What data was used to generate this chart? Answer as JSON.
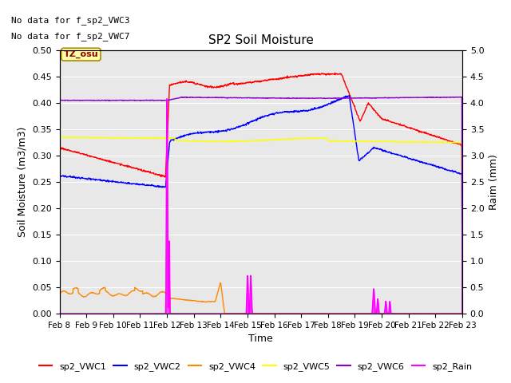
{
  "title": "SP2 Soil Moisture",
  "xlabel": "Time",
  "ylabel_left": "Soil Moisture (m3/m3)",
  "ylabel_right": "Raim (mm)",
  "no_data_text": [
    "No data for f_sp2_VWC3",
    "No data for f_sp2_VWC7"
  ],
  "tz_label": "TZ_osu",
  "ylim_left": [
    0,
    0.5
  ],
  "ylim_right": [
    0,
    5.0
  ],
  "x_tick_labels": [
    "Feb 8",
    "Feb 9",
    "Feb 10",
    "Feb 11",
    "Feb 12",
    "Feb 13",
    "Feb 14",
    "Feb 15",
    "Feb 16",
    "Feb 17",
    "Feb 18",
    "Feb 19",
    "Feb 20",
    "Feb 21",
    "Feb 22",
    "Feb 23"
  ],
  "colors": {
    "VWC1": "#ff0000",
    "VWC2": "#0000ff",
    "VWC4": "#ff8800",
    "VWC5": "#ffff00",
    "VWC6": "#8800cc",
    "Rain": "#ff00ff",
    "bg": "#e8e8e8"
  },
  "legend_entries": [
    "sp2_VWC1",
    "sp2_VWC2",
    "sp2_VWC4",
    "sp2_VWC5",
    "sp2_VWC6",
    "sp2_Rain"
  ]
}
